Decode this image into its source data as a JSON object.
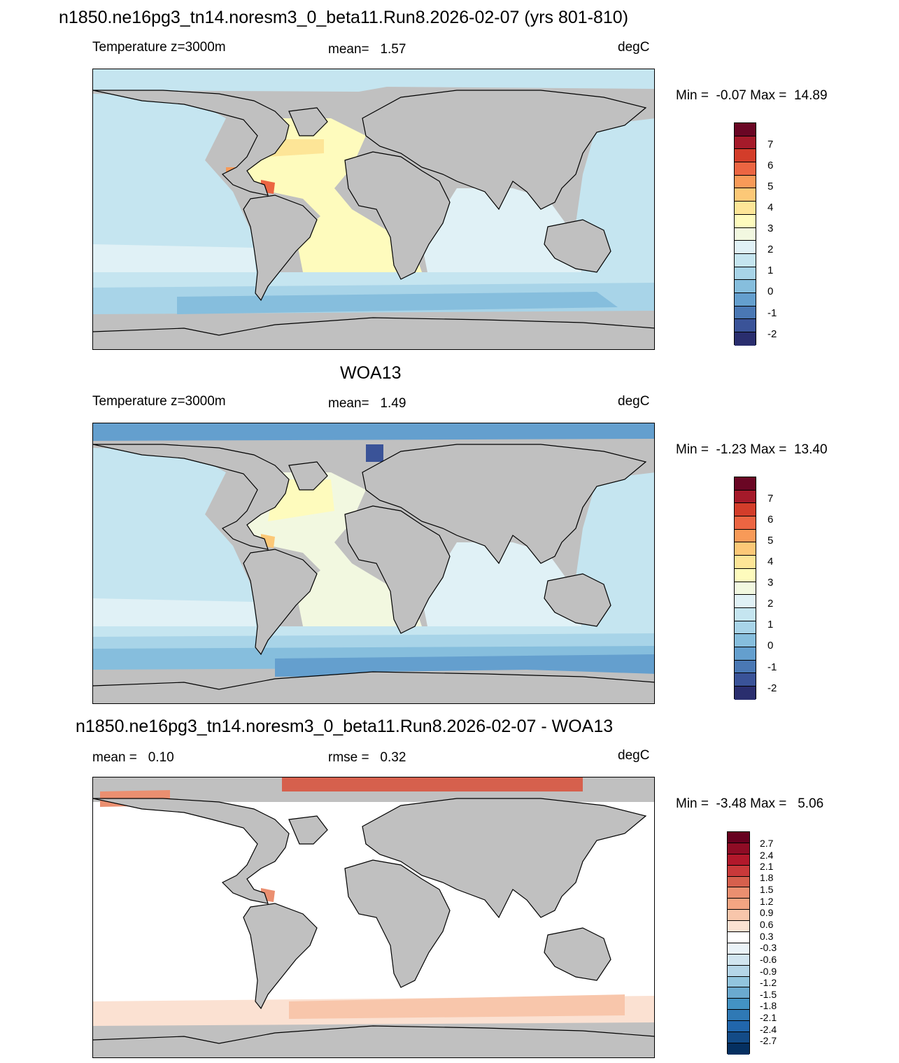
{
  "title": "n1850.ne16pg3_tn14.noresm3_0_beta11.Run8.2026-02-07 (yrs 801-810)",
  "panels": [
    {
      "heading": "",
      "left_label": "Temperature z=3000m",
      "center_label": "mean=   1.57",
      "right_label": "degC",
      "minmax": "Min =  -0.07 Max =  14.89",
      "colorbar": {
        "colors": [
          "#6a0624",
          "#a51a2a",
          "#d33d2a",
          "#ec6542",
          "#f89a58",
          "#fcc877",
          "#fde597",
          "#fefbbd",
          "#f2f8e0",
          "#e0f1f6",
          "#c5e5f0",
          "#a8d4e8",
          "#86bedd",
          "#649fce",
          "#4a78b4",
          "#3a5398",
          "#2a2e6e"
        ],
        "labels": [
          "7",
          "6",
          "5",
          "4",
          "3",
          "2",
          "1",
          "0",
          "-1",
          "-2"
        ]
      }
    },
    {
      "heading": "WOA13",
      "left_label": "Temperature z=3000m",
      "center_label": "mean=   1.49",
      "right_label": "degC",
      "minmax": "Min =  -1.23 Max =  13.40",
      "colorbar": {
        "colors": [
          "#6a0624",
          "#a51a2a",
          "#d33d2a",
          "#ec6542",
          "#f89a58",
          "#fcc877",
          "#fde597",
          "#fefbbd",
          "#f2f8e0",
          "#e0f1f6",
          "#c5e5f0",
          "#a8d4e8",
          "#86bedd",
          "#649fce",
          "#4a78b4",
          "#3a5398",
          "#2a2e6e"
        ],
        "labels": [
          "7",
          "6",
          "5",
          "4",
          "3",
          "2",
          "1",
          "0",
          "-1",
          "-2"
        ]
      }
    },
    {
      "heading": "n1850.ne16pg3_tn14.noresm3_0_beta11.Run8.2026-02-07 - WOA13",
      "left_label": "mean =   0.10",
      "center_label": "rmse =   0.32",
      "right_label": "degC",
      "minmax": "Min =  -3.48 Max =   5.06",
      "colorbar": {
        "colors": [
          "#67001f",
          "#8f0c25",
          "#b2182b",
          "#c9393a",
          "#d6604d",
          "#eb8f70",
          "#f4a582",
          "#f8c6ab",
          "#fbe1d2",
          "#ffffff",
          "#eaf3f8",
          "#d1e5f0",
          "#b5d6e8",
          "#92c5de",
          "#6baacf",
          "#4393c3",
          "#2f79b5",
          "#2166ac",
          "#134b87",
          "#053061"
        ],
        "labels": [
          "2.7",
          "2.4",
          "2.1",
          "1.8",
          "1.5",
          "1.2",
          "0.9",
          "0.6",
          "0.3",
          "-0.3",
          "-0.6",
          "-0.9",
          "-1.2",
          "-1.5",
          "-1.8",
          "-2.1",
          "-2.4",
          "-2.7"
        ]
      }
    }
  ]
}
